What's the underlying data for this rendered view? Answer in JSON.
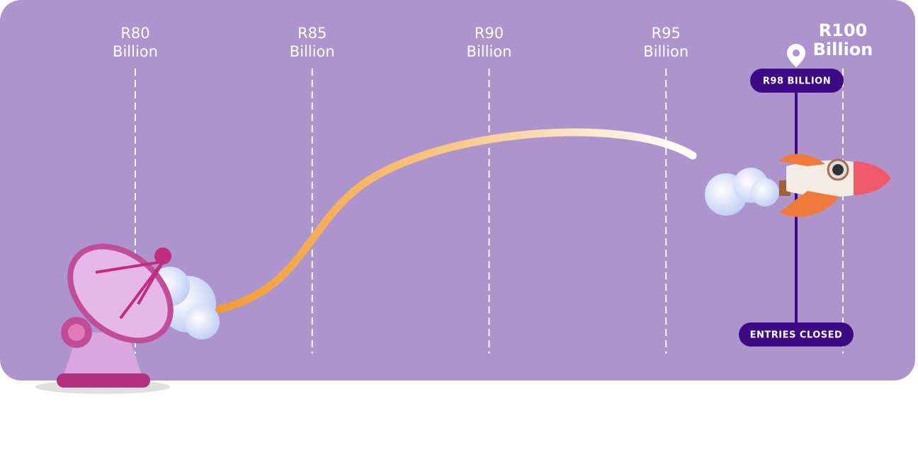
{
  "scale": {
    "markers": [
      {
        "amount": "R80",
        "unit": "Billion"
      },
      {
        "amount": "R85",
        "unit": "Billion"
      },
      {
        "amount": "R90",
        "unit": "Billion"
      },
      {
        "amount": "R95",
        "unit": "Billion"
      },
      {
        "amount": "R100",
        "unit": "Billion"
      }
    ]
  },
  "indicator": {
    "label": "R98 BILLION",
    "status": "ENTRIES CLOSED"
  }
}
